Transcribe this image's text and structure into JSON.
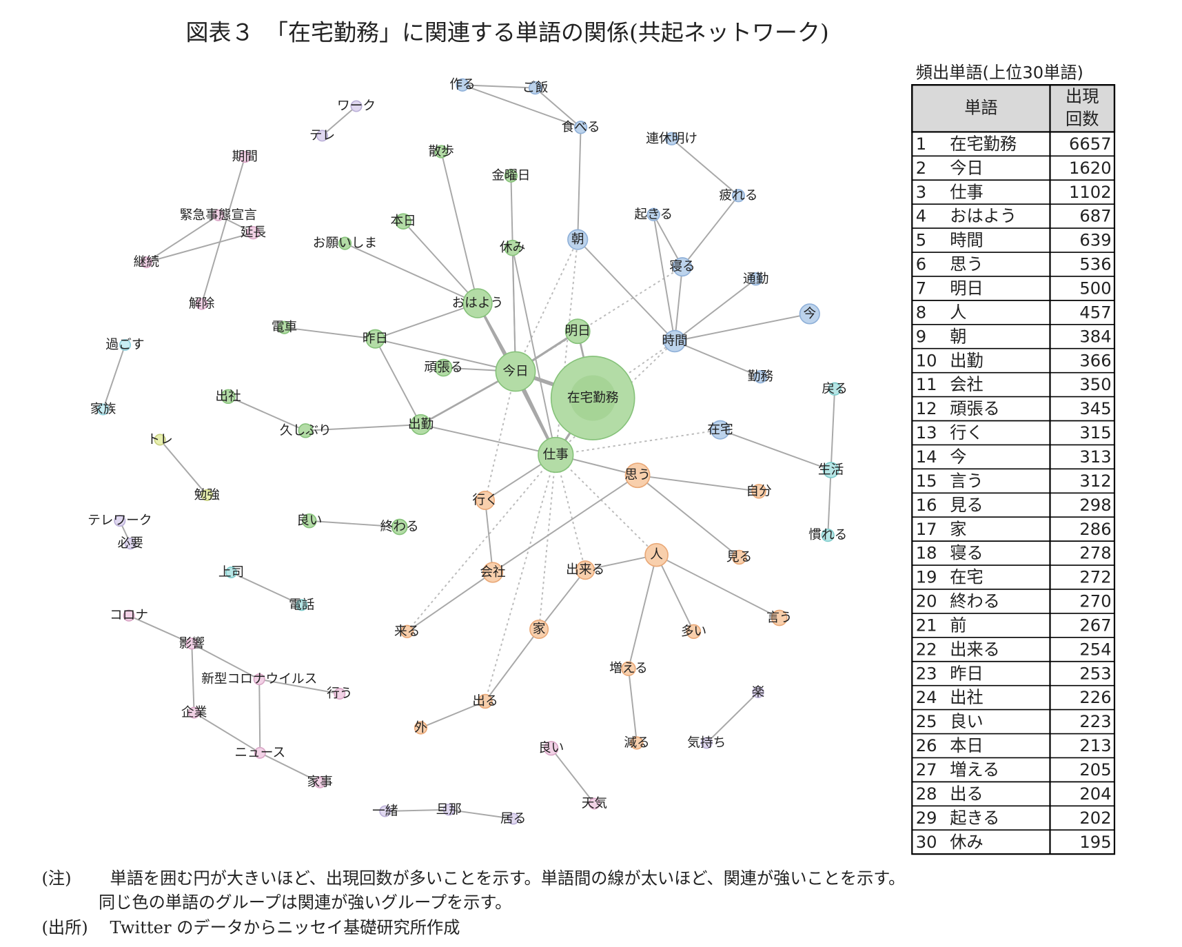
{
  "header": {
    "title": "図表３　「在宅勤務」に関連する単語の関係(共起ネットワーク)"
  },
  "network": {
    "nodes": [
      {
        "label": "作る"
      },
      {
        "label": "ご飯"
      },
      {
        "label": "食べる"
      },
      {
        "label": "朝"
      },
      {
        "label": "起きる"
      },
      {
        "label": "寝る"
      },
      {
        "label": "時間"
      },
      {
        "label": "通勤"
      },
      {
        "label": "今"
      },
      {
        "label": "勤務"
      },
      {
        "label": "在宅"
      },
      {
        "label": "連休明け"
      },
      {
        "label": "疲れる"
      },
      {
        "label": "在宅勤務"
      },
      {
        "label": "今日"
      },
      {
        "label": "仕事"
      },
      {
        "label": "おはよう"
      },
      {
        "label": "明日"
      },
      {
        "label": "出勤"
      },
      {
        "label": "昨日"
      },
      {
        "label": "頑張る"
      },
      {
        "label": "休み"
      },
      {
        "label": "本日"
      },
      {
        "label": "お願いしま"
      },
      {
        "label": "金曜日"
      },
      {
        "label": "散歩"
      },
      {
        "label": "電車"
      },
      {
        "label": "久しぶり"
      },
      {
        "label": "出社"
      },
      {
        "label": "良い"
      },
      {
        "label": "終わる"
      },
      {
        "label": "生活"
      },
      {
        "label": "戻る"
      },
      {
        "label": "慣れる"
      },
      {
        "label": "思う"
      },
      {
        "label": "人"
      },
      {
        "label": "自分"
      },
      {
        "label": "見る"
      },
      {
        "label": "言う"
      },
      {
        "label": "多い"
      },
      {
        "label": "増える"
      },
      {
        "label": "減る"
      },
      {
        "label": "出来る"
      },
      {
        "label": "家"
      },
      {
        "label": "出る"
      },
      {
        "label": "外"
      },
      {
        "label": "会社"
      },
      {
        "label": "行く"
      },
      {
        "label": "来る"
      },
      {
        "label": "ワーク"
      },
      {
        "label": "テレ"
      },
      {
        "label": "期間"
      },
      {
        "label": "緊急事態宣言"
      },
      {
        "label": "延長"
      },
      {
        "label": "継続"
      },
      {
        "label": "解除"
      },
      {
        "label": "過ごす"
      },
      {
        "label": "家族"
      },
      {
        "label": "トレ"
      },
      {
        "label": "勉強"
      },
      {
        "label": "テレワーク"
      },
      {
        "label": "必要"
      },
      {
        "label": "上司"
      },
      {
        "label": "電話"
      },
      {
        "label": "コロナ"
      },
      {
        "label": "影響"
      },
      {
        "label": "新型コロナウイルス"
      },
      {
        "label": "行う"
      },
      {
        "label": "企業"
      },
      {
        "label": "ニュース"
      },
      {
        "label": "家事"
      },
      {
        "label": "一緒"
      },
      {
        "label": "旦那"
      },
      {
        "label": "居る"
      },
      {
        "label": "良い"
      },
      {
        "label": "天気"
      },
      {
        "label": "楽"
      },
      {
        "label": "気持ち"
      }
    ]
  },
  "table": {
    "caption": "頻出単語(上位30単語)",
    "header": {
      "word": "単語",
      "count": [
        "出現",
        "回数"
      ]
    },
    "rows": [
      [
        1,
        "在宅勤務",
        6657
      ],
      [
        2,
        "今日",
        1620
      ],
      [
        3,
        "仕事",
        1102
      ],
      [
        4,
        "おはよう",
        687
      ],
      [
        5,
        "時間",
        639
      ],
      [
        6,
        "思う",
        536
      ],
      [
        7,
        "明日",
        500
      ],
      [
        8,
        "人",
        457
      ],
      [
        9,
        "朝",
        384
      ],
      [
        10,
        "出勤",
        366
      ],
      [
        11,
        "会社",
        350
      ],
      [
        12,
        "頑張る",
        345
      ],
      [
        13,
        "行く",
        315
      ],
      [
        14,
        "今",
        313
      ],
      [
        15,
        "言う",
        312
      ],
      [
        16,
        "見る",
        298
      ],
      [
        17,
        "家",
        286
      ],
      [
        18,
        "寝る",
        278
      ],
      [
        19,
        "在宅",
        272
      ],
      [
        20,
        "終わる",
        270
      ],
      [
        21,
        "前",
        267
      ],
      [
        22,
        "出来る",
        254
      ],
      [
        23,
        "昨日",
        253
      ],
      [
        24,
        "出社",
        226
      ],
      [
        25,
        "良い",
        223
      ],
      [
        26,
        "本日",
        213
      ],
      [
        27,
        "増える",
        205
      ],
      [
        28,
        "出る",
        204
      ],
      [
        29,
        "起きる",
        202
      ],
      [
        30,
        "休み",
        195
      ]
    ]
  },
  "notes": {
    "note_label": "(注)",
    "note_lines": [
      "単語を囲む円が大きいほど、出現回数が多いことを示す。単語間の線が太いほど、関連が強いことを示す。",
      "同じ色の単語のグループは関連が強いグループを示す。"
    ],
    "source_label": "(出所)",
    "source": "Twitter のデータからニッセイ基礎研究所作成"
  }
}
